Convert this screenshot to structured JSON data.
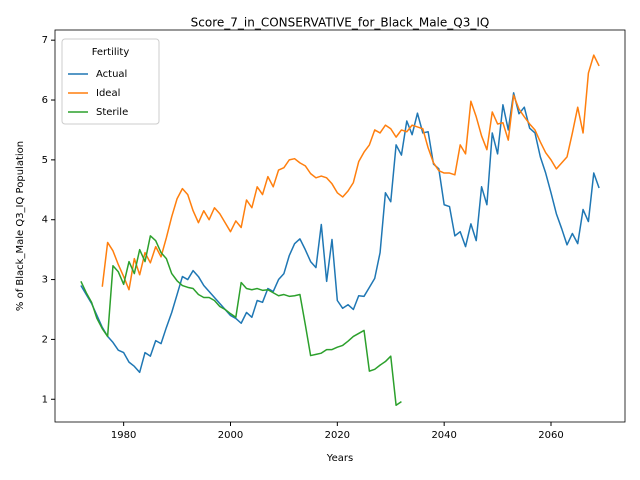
{
  "chart_data": {
    "type": "line",
    "title": "Score_7_in_CONSERVATIVE_for_Black_Male_Q3_IQ",
    "xlabel": "Years",
    "ylabel": "% of Black_Male Q3_IQ Population",
    "legend_title": "Fertility",
    "legend": "upper left",
    "x": [
      1972,
      1973,
      1974,
      1975,
      1976,
      1977,
      1978,
      1979,
      1980,
      1981,
      1982,
      1983,
      1984,
      1985,
      1986,
      1987,
      1988,
      1989,
      1990,
      1991,
      1992,
      1993,
      1994,
      1995,
      1996,
      1997,
      1998,
      1999,
      2000,
      2001,
      2002,
      2003,
      2004,
      2005,
      2006,
      2007,
      2008,
      2009,
      2010,
      2011,
      2012,
      2013,
      2014,
      2015,
      2016,
      2017,
      2018,
      2019,
      2020,
      2021,
      2022,
      2023,
      2024,
      2025,
      2026,
      2027,
      2028,
      2029,
      2030,
      2031,
      2032,
      2033,
      2034,
      2035,
      2036,
      2037,
      2038,
      2039,
      2040,
      2041,
      2042,
      2043,
      2044,
      2045,
      2046,
      2047,
      2048,
      2049,
      2050,
      2051,
      2052,
      2053,
      2054,
      2055,
      2056,
      2057,
      2058,
      2059,
      2060,
      2061,
      2062,
      2063,
      2064,
      2065,
      2066,
      2067,
      2068,
      2069
    ],
    "series": [
      {
        "name": "Actual",
        "color": "#1f77b4",
        "values": [
          2.9,
          2.75,
          2.6,
          2.4,
          2.2,
          2.05,
          1.95,
          1.82,
          1.78,
          1.62,
          1.55,
          1.45,
          1.78,
          1.72,
          1.98,
          1.93,
          2.2,
          2.45,
          2.75,
          3.05,
          3.0,
          3.15,
          3.05,
          2.9,
          2.8,
          2.7,
          2.6,
          2.5,
          2.4,
          2.35,
          2.27,
          2.45,
          2.37,
          2.65,
          2.62,
          2.85,
          2.8,
          3.0,
          3.1,
          3.4,
          3.6,
          3.68,
          3.5,
          3.3,
          3.2,
          3.92,
          2.97,
          3.67,
          2.65,
          2.52,
          2.58,
          2.5,
          2.73,
          2.72,
          2.87,
          3.02,
          3.45,
          4.45,
          4.3,
          5.25,
          5.08,
          5.65,
          5.42,
          5.78,
          5.45,
          5.47,
          4.93,
          4.85,
          4.25,
          4.22,
          3.73,
          3.8,
          3.55,
          3.93,
          3.65,
          4.55,
          4.25,
          5.45,
          5.1,
          5.92,
          5.5,
          6.12,
          5.77,
          5.88,
          5.53,
          5.45,
          5.05,
          4.78,
          4.45,
          4.1,
          3.85,
          3.58,
          3.77,
          3.6,
          4.17,
          3.97,
          4.78,
          4.53
        ]
      },
      {
        "name": "Ideal",
        "color": "#ff7f0e",
        "values": [
          null,
          null,
          null,
          null,
          2.88,
          3.62,
          3.48,
          3.25,
          3.05,
          2.83,
          3.35,
          3.08,
          3.45,
          3.28,
          3.55,
          3.38,
          3.7,
          4.05,
          4.35,
          4.52,
          4.42,
          4.15,
          3.95,
          4.15,
          4.0,
          4.2,
          4.1,
          3.95,
          3.8,
          3.98,
          3.87,
          4.33,
          4.2,
          4.55,
          4.42,
          4.72,
          4.55,
          4.83,
          4.87,
          5.0,
          5.02,
          4.95,
          4.9,
          4.77,
          4.7,
          4.73,
          4.7,
          4.6,
          4.45,
          4.38,
          4.48,
          4.62,
          4.97,
          5.13,
          5.25,
          5.5,
          5.45,
          5.58,
          5.52,
          5.38,
          5.5,
          5.47,
          5.58,
          5.55,
          5.52,
          5.2,
          4.95,
          4.82,
          4.78,
          4.78,
          4.75,
          5.25,
          5.1,
          5.98,
          5.72,
          5.4,
          5.17,
          5.8,
          5.6,
          5.62,
          5.33,
          6.08,
          5.85,
          5.72,
          5.6,
          5.5,
          5.3,
          5.12,
          5.0,
          4.85,
          4.95,
          5.05,
          5.45,
          5.88,
          5.45,
          6.45,
          6.75,
          6.57
        ]
      },
      {
        "name": "Sterile",
        "color": "#2ca02c",
        "values": [
          2.97,
          2.78,
          2.62,
          2.35,
          2.18,
          2.05,
          3.23,
          3.13,
          2.92,
          3.3,
          3.1,
          3.5,
          3.3,
          3.73,
          3.65,
          3.45,
          3.35,
          3.1,
          2.98,
          2.9,
          2.87,
          2.85,
          2.75,
          2.7,
          2.7,
          2.65,
          2.55,
          2.5,
          2.43,
          2.37,
          2.95,
          2.85,
          2.83,
          2.85,
          2.82,
          2.83,
          2.78,
          2.73,
          2.75,
          2.72,
          2.73,
          2.75,
          2.25,
          1.73,
          1.75,
          1.77,
          1.83,
          1.83,
          1.87,
          1.9,
          1.97,
          2.05,
          2.1,
          2.15,
          1.47,
          1.5,
          1.57,
          1.63,
          1.72,
          0.9,
          0.96,
          null,
          null,
          null,
          null,
          null,
          null,
          null,
          null,
          null,
          null,
          null,
          null,
          null,
          null,
          null,
          null,
          null,
          null,
          null,
          null,
          null,
          null,
          null,
          null,
          null,
          null,
          null,
          null,
          null,
          null,
          null,
          null,
          null,
          null,
          null,
          null,
          null
        ]
      }
    ],
    "xlim": [
      1967.15,
      2073.85
    ],
    "ylim": [
      0.62,
      7.17
    ],
    "xticks": [
      1980,
      2000,
      2020,
      2040,
      2060
    ],
    "yticks": [
      1,
      2,
      3,
      4,
      5,
      6,
      7
    ],
    "grid": false
  }
}
